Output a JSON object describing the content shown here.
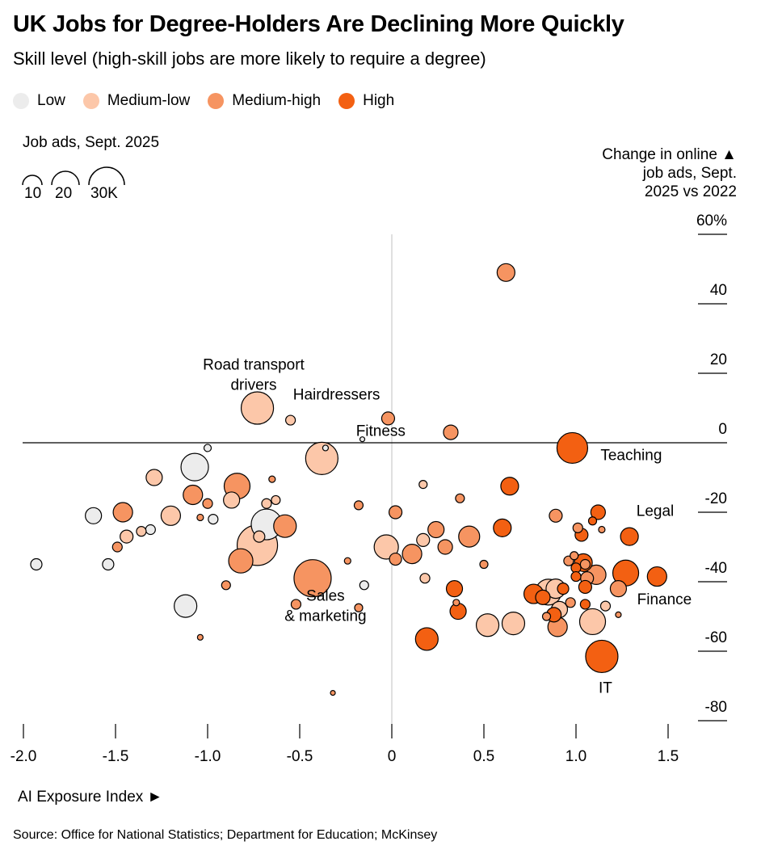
{
  "header": {
    "title": "UK Jobs for Degree-Holders Are Declining More Quickly",
    "subtitle": "Skill level (high-skill jobs are more likely to require a degree)"
  },
  "legend": [
    {
      "label": "Low",
      "color": "#ececec"
    },
    {
      "label": "Medium-low",
      "color": "#fcc7a9"
    },
    {
      "label": "Medium-high",
      "color": "#f69461"
    },
    {
      "label": "High",
      "color": "#f36012"
    }
  ],
  "size_legend": {
    "title": "Job ads, Sept. 2025",
    "labels": [
      "10",
      "20",
      "30K"
    ]
  },
  "y_axis_title": {
    "line1": "Change in online ▲",
    "line2": "job ads, Sept.",
    "line3": "2025 vs 2022"
  },
  "x_axis_title": "AI Exposure Index ►",
  "source": "Source: Office for National Statistics; Department for Education; McKinsey",
  "chart_data": {
    "type": "scatter",
    "xlim": [
      -2.0,
      1.5
    ],
    "ylim": [
      -80,
      60
    ],
    "x_ticks": [
      "-2.0",
      "-1.5",
      "-1.0",
      "-0.5",
      "0",
      "0.5",
      "1.0",
      "1.5"
    ],
    "y_ticks": [
      "60%",
      "40",
      "20",
      "0",
      "-20",
      "-40",
      "-60",
      "-80"
    ],
    "y_tick_values": [
      60,
      40,
      20,
      0,
      -20,
      -40,
      -60,
      -80
    ],
    "x_tick_values": [
      -2.0,
      -1.5,
      -1.0,
      -0.5,
      0,
      0.5,
      1.0,
      1.5
    ],
    "annotations": [
      {
        "text": [
          "Road transport",
          "drivers"
        ],
        "x": -0.75,
        "y": 21
      },
      {
        "text": [
          "Hairdressers"
        ],
        "x": -0.3,
        "y": 12.5
      },
      {
        "text": [
          "Fitness"
        ],
        "x": -0.06,
        "y": 2
      },
      {
        "text": [
          "Teaching"
        ],
        "x": 1.3,
        "y": -5
      },
      {
        "text": [
          "Legal"
        ],
        "x": 1.43,
        "y": -21
      },
      {
        "text": [
          "Finance"
        ],
        "x": 1.48,
        "y": -46.5
      },
      {
        "text": [
          "Sales",
          "& marketing"
        ],
        "x": -0.36,
        "y": -45.5
      },
      {
        "text": [
          "IT"
        ],
        "x": 1.16,
        "y": -72
      }
    ],
    "points": [
      {
        "x": -1.93,
        "y": -35,
        "r": 7,
        "s": "Low"
      },
      {
        "x": -1.54,
        "y": -35,
        "r": 7,
        "s": "Low"
      },
      {
        "x": -1.62,
        "y": -21,
        "r": 10,
        "s": "Low"
      },
      {
        "x": -1.12,
        "y": -47,
        "r": 14,
        "s": "Low"
      },
      {
        "x": -1.07,
        "y": -7,
        "r": 17,
        "s": "Low"
      },
      {
        "x": -1.0,
        "y": -1.5,
        "r": 4.5,
        "s": "Low"
      },
      {
        "x": -0.97,
        "y": -22,
        "r": 6,
        "s": "Low"
      },
      {
        "x": -1.31,
        "y": -25,
        "r": 6,
        "s": "Low"
      },
      {
        "x": -0.68,
        "y": -23.5,
        "r": 19,
        "s": "Low"
      },
      {
        "x": -0.36,
        "y": -1.5,
        "r": 3.5,
        "s": "Low"
      },
      {
        "x": -0.16,
        "y": 1,
        "r": 3,
        "s": "Low"
      },
      {
        "x": -0.15,
        "y": -41,
        "r": 5.5,
        "s": "Low"
      },
      {
        "x": -1.44,
        "y": -27,
        "r": 8,
        "s": "Medium-low"
      },
      {
        "x": -1.36,
        "y": -25.5,
        "r": 6,
        "s": "Medium-low"
      },
      {
        "x": -1.29,
        "y": -10,
        "r": 10,
        "s": "Medium-low"
      },
      {
        "x": -1.2,
        "y": -21,
        "r": 12,
        "s": "Medium-low"
      },
      {
        "x": -0.87,
        "y": -16.5,
        "r": 10,
        "s": "Medium-low"
      },
      {
        "x": -0.73,
        "y": 10,
        "r": 20,
        "s": "Medium-low"
      },
      {
        "x": -0.73,
        "y": -29.5,
        "r": 25,
        "s": "Medium-low"
      },
      {
        "x": -0.72,
        "y": -27,
        "r": 7,
        "s": "Medium-low"
      },
      {
        "x": -0.68,
        "y": -17.5,
        "r": 6,
        "s": "Medium-low"
      },
      {
        "x": -0.63,
        "y": -16.5,
        "r": 5.5,
        "s": "Medium-low"
      },
      {
        "x": -0.55,
        "y": 6.5,
        "r": 6,
        "s": "Medium-low"
      },
      {
        "x": -0.38,
        "y": -4.5,
        "r": 20,
        "s": "Medium-low"
      },
      {
        "x": -0.03,
        "y": -30,
        "r": 15,
        "s": "Medium-low"
      },
      {
        "x": 0.17,
        "y": -28,
        "r": 8,
        "s": "Medium-low"
      },
      {
        "x": 0.18,
        "y": -39,
        "r": 6,
        "s": "Medium-low"
      },
      {
        "x": 0.17,
        "y": -12,
        "r": 5,
        "s": "Medium-low"
      },
      {
        "x": 0.52,
        "y": -52.5,
        "r": 14,
        "s": "Medium-low"
      },
      {
        "x": 0.66,
        "y": -52,
        "r": 14,
        "s": "Medium-low"
      },
      {
        "x": 0.91,
        "y": -48,
        "r": 10,
        "s": "Medium-low"
      },
      {
        "x": 0.89,
        "y": -42,
        "r": 12,
        "s": "Medium-low"
      },
      {
        "x": 1.09,
        "y": -51.5,
        "r": 16,
        "s": "Medium-low"
      },
      {
        "x": 1.16,
        "y": -47,
        "r": 6,
        "s": "Medium-low"
      },
      {
        "x": 0.85,
        "y": -43,
        "r": 16,
        "s": "Medium-low"
      },
      {
        "x": -1.49,
        "y": -30,
        "r": 6,
        "s": "Medium-high"
      },
      {
        "x": -1.46,
        "y": -20,
        "r": 12,
        "s": "Medium-high"
      },
      {
        "x": -1.08,
        "y": -15,
        "r": 12,
        "s": "Medium-high"
      },
      {
        "x": -1.04,
        "y": -21.5,
        "r": 4,
        "s": "Medium-high"
      },
      {
        "x": -1.0,
        "y": -17.5,
        "r": 6,
        "s": "Medium-high"
      },
      {
        "x": -1.04,
        "y": -56,
        "r": 3.5,
        "s": "Medium-high"
      },
      {
        "x": -0.84,
        "y": -12.5,
        "r": 16,
        "s": "Medium-high"
      },
      {
        "x": -0.82,
        "y": -34,
        "r": 15,
        "s": "Medium-high"
      },
      {
        "x": -0.9,
        "y": -41,
        "r": 5.5,
        "s": "Medium-high"
      },
      {
        "x": -0.65,
        "y": -10.5,
        "r": 4,
        "s": "Medium-high"
      },
      {
        "x": -0.58,
        "y": -24,
        "r": 14,
        "s": "Medium-high"
      },
      {
        "x": -0.43,
        "y": -39,
        "r": 23,
        "s": "Medium-high"
      },
      {
        "x": -0.52,
        "y": -46.5,
        "r": 6,
        "s": "Medium-high"
      },
      {
        "x": -0.24,
        "y": -34,
        "r": 4,
        "s": "Medium-high"
      },
      {
        "x": -0.18,
        "y": -18,
        "r": 5.5,
        "s": "Medium-high"
      },
      {
        "x": -0.18,
        "y": -47.5,
        "r": 5,
        "s": "Medium-high"
      },
      {
        "x": -0.32,
        "y": -72,
        "r": 3,
        "s": "Medium-high"
      },
      {
        "x": -0.02,
        "y": 7,
        "r": 8,
        "s": "Medium-high"
      },
      {
        "x": 0.02,
        "y": -20,
        "r": 8,
        "s": "Medium-high"
      },
      {
        "x": 0.02,
        "y": -33.5,
        "r": 7.5,
        "s": "Medium-high"
      },
      {
        "x": 0.11,
        "y": -32,
        "r": 12,
        "s": "Medium-high"
      },
      {
        "x": 0.24,
        "y": -25,
        "r": 10,
        "s": "Medium-high"
      },
      {
        "x": 0.29,
        "y": -30,
        "r": 9,
        "s": "Medium-high"
      },
      {
        "x": 0.32,
        "y": 3,
        "r": 9,
        "s": "Medium-high"
      },
      {
        "x": 0.35,
        "y": -46,
        "r": 4,
        "s": "Medium-high"
      },
      {
        "x": 0.42,
        "y": -27,
        "r": 13,
        "s": "Medium-high"
      },
      {
        "x": 0.37,
        "y": -16,
        "r": 5.5,
        "s": "Medium-high"
      },
      {
        "x": 0.5,
        "y": -35,
        "r": 5,
        "s": "Medium-high"
      },
      {
        "x": 0.62,
        "y": 49,
        "r": 11,
        "s": "Medium-high"
      },
      {
        "x": 0.89,
        "y": -21,
        "r": 8,
        "s": "Medium-high"
      },
      {
        "x": 0.9,
        "y": -53,
        "r": 12,
        "s": "Medium-high"
      },
      {
        "x": 0.96,
        "y": -34,
        "r": 6,
        "s": "Medium-high"
      },
      {
        "x": 0.99,
        "y": -32.5,
        "r": 5,
        "s": "Medium-high"
      },
      {
        "x": 1.01,
        "y": -24.5,
        "r": 6,
        "s": "Medium-high"
      },
      {
        "x": 1.05,
        "y": -35,
        "r": 6,
        "s": "Medium-high"
      },
      {
        "x": 1.11,
        "y": -38,
        "r": 12,
        "s": "Medium-high"
      },
      {
        "x": 1.14,
        "y": -25,
        "r": 4,
        "s": "Medium-high"
      },
      {
        "x": 1.23,
        "y": -42,
        "r": 10,
        "s": "Medium-high"
      },
      {
        "x": 1.23,
        "y": -49.5,
        "r": 3.5,
        "s": "Medium-high"
      },
      {
        "x": 0.97,
        "y": -46,
        "r": 6,
        "s": "Medium-high"
      },
      {
        "x": 0.84,
        "y": -50,
        "r": 5,
        "s": "Medium-high"
      },
      {
        "x": 1.06,
        "y": -39,
        "r": 8,
        "s": "Medium-high"
      },
      {
        "x": 0.19,
        "y": -56.5,
        "r": 14,
        "s": "High"
      },
      {
        "x": 0.34,
        "y": -42,
        "r": 10,
        "s": "High"
      },
      {
        "x": 0.36,
        "y": -48.5,
        "r": 10,
        "s": "High"
      },
      {
        "x": 0.6,
        "y": -24.5,
        "r": 11,
        "s": "High"
      },
      {
        "x": 0.64,
        "y": -12.5,
        "r": 11,
        "s": "High"
      },
      {
        "x": 0.77,
        "y": -43.5,
        "r": 12,
        "s": "High"
      },
      {
        "x": 0.82,
        "y": -44.5,
        "r": 9,
        "s": "High"
      },
      {
        "x": 0.88,
        "y": -49.5,
        "r": 9,
        "s": "High"
      },
      {
        "x": 0.93,
        "y": -42,
        "r": 7,
        "s": "High"
      },
      {
        "x": 0.98,
        "y": -1.5,
        "r": 19,
        "s": "High"
      },
      {
        "x": 1.0,
        "y": -36,
        "r": 6,
        "s": "High"
      },
      {
        "x": 1.0,
        "y": -38.5,
        "r": 6,
        "s": "High"
      },
      {
        "x": 1.03,
        "y": -26.5,
        "r": 8,
        "s": "High"
      },
      {
        "x": 1.04,
        "y": -34.5,
        "r": 11,
        "s": "High"
      },
      {
        "x": 1.05,
        "y": -41.5,
        "r": 8,
        "s": "High"
      },
      {
        "x": 1.05,
        "y": -46.5,
        "r": 6,
        "s": "High"
      },
      {
        "x": 1.09,
        "y": -22.5,
        "r": 5,
        "s": "High"
      },
      {
        "x": 1.12,
        "y": -20,
        "r": 9,
        "s": "High"
      },
      {
        "x": 1.14,
        "y": -61.5,
        "r": 20,
        "s": "High"
      },
      {
        "x": 1.27,
        "y": -37.5,
        "r": 16,
        "s": "High"
      },
      {
        "x": 1.29,
        "y": -27,
        "r": 11,
        "s": "High"
      },
      {
        "x": 1.44,
        "y": -38.5,
        "r": 12,
        "s": "High"
      }
    ]
  }
}
